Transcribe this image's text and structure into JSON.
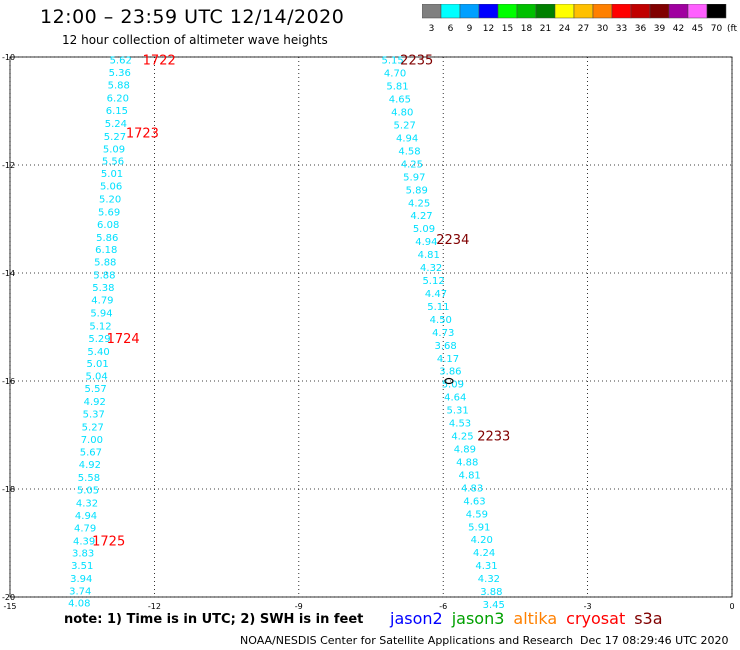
{
  "header": {
    "title": "12:00 – 23:59 UTC 12/14/2020",
    "subtitle": "12 hour collection of altimeter wave heights"
  },
  "color_scale": {
    "unit_label": "(ft)",
    "bins": [
      {
        "label": "3",
        "color": "#808080"
      },
      {
        "label": "6",
        "color": "#00ffff"
      },
      {
        "label": "9",
        "color": "#00a0ff"
      },
      {
        "label": "12",
        "color": "#0000ff"
      },
      {
        "label": "15",
        "color": "#00ff00"
      },
      {
        "label": "18",
        "color": "#00c000"
      },
      {
        "label": "21",
        "color": "#008000"
      },
      {
        "label": "24",
        "color": "#ffff00"
      },
      {
        "label": "27",
        "color": "#ffc000"
      },
      {
        "label": "30",
        "color": "#ff8000"
      },
      {
        "label": "33",
        "color": "#ff0000"
      },
      {
        "label": "36",
        "color": "#c00000"
      },
      {
        "label": "39",
        "color": "#800000"
      },
      {
        "label": "42",
        "color": "#a000a0"
      },
      {
        "label": "45",
        "color": "#ff60ff"
      },
      {
        "label": "70",
        "color": "#000000"
      }
    ]
  },
  "map": {
    "lon_range": [
      -15,
      0
    ],
    "lat_range": [
      -20,
      -10
    ],
    "x_ticks": [
      {
        "value": -15,
        "label": "-15"
      },
      {
        "value": -12,
        "label": "-12"
      },
      {
        "value": -9,
        "label": "-9"
      },
      {
        "value": -6,
        "label": "-6"
      },
      {
        "value": -3,
        "label": "-3"
      },
      {
        "value": 0,
        "label": "0"
      }
    ],
    "y_ticks": [
      {
        "value": -10,
        "label": "-10"
      },
      {
        "value": -12,
        "label": "-12"
      },
      {
        "value": -14,
        "label": "-14"
      },
      {
        "value": -16,
        "label": "-16"
      },
      {
        "value": -18,
        "label": "-18"
      },
      {
        "value": -20,
        "label": "-20"
      }
    ],
    "grid": true,
    "track_color": "#00e0ff",
    "time_label_colors": {
      "red": "#ff0000",
      "darkred": "#800000"
    },
    "tracks": [
      {
        "satellite": "cryosat",
        "points": [
          {
            "lon": -12.7,
            "lat": -10.05,
            "swh": "5.62"
          },
          {
            "lon": -12.72,
            "lat": -10.28,
            "swh": "5.36"
          },
          {
            "lon": -12.74,
            "lat": -10.51,
            "swh": "5.88"
          },
          {
            "lon": -12.76,
            "lat": -10.75,
            "swh": "6.20"
          },
          {
            "lon": -12.78,
            "lat": -10.98,
            "swh": "6.15"
          },
          {
            "lon": -12.8,
            "lat": -11.22,
            "swh": "5.24"
          },
          {
            "lon": -12.82,
            "lat": -11.46,
            "swh": "5.27"
          },
          {
            "lon": -12.84,
            "lat": -11.69,
            "swh": "5.09"
          },
          {
            "lon": -12.86,
            "lat": -11.92,
            "swh": "5.56"
          },
          {
            "lon": -12.88,
            "lat": -12.15,
            "swh": "5.01"
          },
          {
            "lon": -12.9,
            "lat": -12.38,
            "swh": "5.06"
          },
          {
            "lon": -12.92,
            "lat": -12.62,
            "swh": "5.20"
          },
          {
            "lon": -12.94,
            "lat": -12.86,
            "swh": "5.69"
          },
          {
            "lon": -12.96,
            "lat": -13.09,
            "swh": "6.08"
          },
          {
            "lon": -12.98,
            "lat": -13.33,
            "swh": "5.86"
          },
          {
            "lon": -13.0,
            "lat": -13.56,
            "swh": "6.18"
          },
          {
            "lon": -13.02,
            "lat": -13.79,
            "swh": "5.88"
          },
          {
            "lon": -13.04,
            "lat": -14.03,
            "swh": "5.88"
          },
          {
            "lon": -13.06,
            "lat": -14.26,
            "swh": "5.38"
          },
          {
            "lon": -13.08,
            "lat": -14.49,
            "swh": "4.79"
          },
          {
            "lon": -13.1,
            "lat": -14.73,
            "swh": "5.94"
          },
          {
            "lon": -13.12,
            "lat": -14.97,
            "swh": "5.12"
          },
          {
            "lon": -13.14,
            "lat": -15.2,
            "swh": "5.29"
          },
          {
            "lon": -13.16,
            "lat": -15.44,
            "swh": "5.40"
          },
          {
            "lon": -13.18,
            "lat": -15.67,
            "swh": "5.01"
          },
          {
            "lon": -13.2,
            "lat": -15.9,
            "swh": "5.04"
          },
          {
            "lon": -13.22,
            "lat": -16.13,
            "swh": "5.57"
          },
          {
            "lon": -13.24,
            "lat": -16.37,
            "swh": "4.92"
          },
          {
            "lon": -13.26,
            "lat": -16.6,
            "swh": "5.37"
          },
          {
            "lon": -13.28,
            "lat": -16.84,
            "swh": "5.27"
          },
          {
            "lon": -13.3,
            "lat": -17.07,
            "swh": "7.00"
          },
          {
            "lon": -13.32,
            "lat": -17.31,
            "swh": "5.67"
          },
          {
            "lon": -13.34,
            "lat": -17.54,
            "swh": "4.92"
          },
          {
            "lon": -13.36,
            "lat": -17.78,
            "swh": "5.58"
          },
          {
            "lon": -13.38,
            "lat": -18.01,
            "swh": "5.05"
          },
          {
            "lon": -13.4,
            "lat": -18.25,
            "swh": "4.32"
          },
          {
            "lon": -13.42,
            "lat": -18.48,
            "swh": "4.94"
          },
          {
            "lon": -13.44,
            "lat": -18.71,
            "swh": "4.79"
          },
          {
            "lon": -13.46,
            "lat": -18.95,
            "swh": "4.39"
          },
          {
            "lon": -13.48,
            "lat": -19.18,
            "swh": "3.83"
          },
          {
            "lon": -13.5,
            "lat": -19.41,
            "swh": "3.51"
          },
          {
            "lon": -13.52,
            "lat": -19.65,
            "swh": "3.94"
          },
          {
            "lon": -13.54,
            "lat": -19.88,
            "swh": "3.74"
          },
          {
            "lon": -13.56,
            "lat": -20.1,
            "swh": "4.08"
          }
        ],
        "time_labels": [
          {
            "text": "1722",
            "lon": -11.9,
            "lat": -10.05,
            "color": "red"
          },
          {
            "text": "1723",
            "lon": -12.25,
            "lat": -11.4,
            "color": "red"
          },
          {
            "text": "1724",
            "lon": -12.65,
            "lat": -15.2,
            "color": "red"
          },
          {
            "text": "1725",
            "lon": -12.95,
            "lat": -18.95,
            "color": "red"
          }
        ]
      },
      {
        "satellite": "s3a",
        "points": [
          {
            "lon": -7.05,
            "lat": -10.05,
            "swh": "5.15"
          },
          {
            "lon": -7.0,
            "lat": -10.29,
            "swh": "4.70"
          },
          {
            "lon": -6.95,
            "lat": -10.53,
            "swh": "5.81"
          },
          {
            "lon": -6.9,
            "lat": -10.77,
            "swh": "4.65"
          },
          {
            "lon": -6.85,
            "lat": -11.01,
            "swh": "4.80"
          },
          {
            "lon": -6.8,
            "lat": -11.25,
            "swh": "5.27"
          },
          {
            "lon": -6.75,
            "lat": -11.49,
            "swh": "4.94"
          },
          {
            "lon": -6.7,
            "lat": -11.73,
            "swh": "4.58"
          },
          {
            "lon": -6.65,
            "lat": -11.97,
            "swh": "4.25"
          },
          {
            "lon": -6.6,
            "lat": -12.21,
            "swh": "5.97"
          },
          {
            "lon": -6.55,
            "lat": -12.45,
            "swh": "5.89"
          },
          {
            "lon": -6.5,
            "lat": -12.69,
            "swh": "4.25"
          },
          {
            "lon": -6.45,
            "lat": -12.93,
            "swh": "4.27"
          },
          {
            "lon": -6.4,
            "lat": -13.17,
            "swh": "5.09"
          },
          {
            "lon": -6.35,
            "lat": -13.41,
            "swh": "4.94"
          },
          {
            "lon": -6.3,
            "lat": -13.65,
            "swh": "4.81"
          },
          {
            "lon": -6.25,
            "lat": -13.89,
            "swh": "4.32"
          },
          {
            "lon": -6.2,
            "lat": -14.13,
            "swh": "5.12"
          },
          {
            "lon": -6.15,
            "lat": -14.37,
            "swh": "4.47"
          },
          {
            "lon": -6.1,
            "lat": -14.61,
            "swh": "5.11"
          },
          {
            "lon": -6.05,
            "lat": -14.85,
            "swh": "4.50"
          },
          {
            "lon": -6.0,
            "lat": -15.09,
            "swh": "4.73"
          },
          {
            "lon": -5.95,
            "lat": -15.33,
            "swh": "3.68"
          },
          {
            "lon": -5.9,
            "lat": -15.57,
            "swh": "4.17"
          },
          {
            "lon": -5.85,
            "lat": -15.81,
            "swh": "3.86"
          },
          {
            "lon": -5.8,
            "lat": -16.05,
            "swh": "5.09"
          },
          {
            "lon": -5.75,
            "lat": -16.29,
            "swh": "4.64"
          },
          {
            "lon": -5.7,
            "lat": -16.53,
            "swh": "5.31"
          },
          {
            "lon": -5.65,
            "lat": -16.77,
            "swh": "4.53"
          },
          {
            "lon": -5.6,
            "lat": -17.01,
            "swh": "4.25"
          },
          {
            "lon": -5.55,
            "lat": -17.25,
            "swh": "4.89"
          },
          {
            "lon": -5.5,
            "lat": -17.49,
            "swh": "4.88"
          },
          {
            "lon": -5.45,
            "lat": -17.73,
            "swh": "4.81"
          },
          {
            "lon": -5.4,
            "lat": -17.97,
            "swh": "4.83"
          },
          {
            "lon": -5.35,
            "lat": -18.21,
            "swh": "4.63"
          },
          {
            "lon": -5.3,
            "lat": -18.45,
            "swh": "4.59"
          },
          {
            "lon": -5.25,
            "lat": -18.69,
            "swh": "5.91"
          },
          {
            "lon": -5.2,
            "lat": -18.93,
            "swh": "4.20"
          },
          {
            "lon": -5.15,
            "lat": -19.17,
            "swh": "4.24"
          },
          {
            "lon": -5.1,
            "lat": -19.41,
            "swh": "4.31"
          },
          {
            "lon": -5.05,
            "lat": -19.65,
            "swh": "4.32"
          },
          {
            "lon": -5.0,
            "lat": -19.89,
            "swh": "3.88"
          },
          {
            "lon": -4.95,
            "lat": -20.13,
            "swh": "3.45"
          }
        ],
        "time_labels": [
          {
            "text": "2235",
            "lon": -6.55,
            "lat": -10.05,
            "color": "darkred"
          },
          {
            "text": "2234",
            "lon": -5.8,
            "lat": -13.37,
            "color": "darkred"
          },
          {
            "text": "2233",
            "lon": -4.95,
            "lat": -17.01,
            "color": "darkred"
          }
        ]
      }
    ]
  },
  "note": "note: 1) Time is in UTC; 2) SWH is in feet",
  "legend": [
    {
      "name": "jason2",
      "color": "#0000ff"
    },
    {
      "name": "jason3",
      "color": "#00a000"
    },
    {
      "name": "altika",
      "color": "#ff8000"
    },
    {
      "name": "cryosat",
      "color": "#ff0000"
    },
    {
      "name": "s3a",
      "color": "#800000"
    }
  ],
  "footer": {
    "credit": "NOAA/NESDIS Center for Satellite Applications and Research",
    "timestamp": "Dec 17 08:29:46 UTC 2020"
  }
}
